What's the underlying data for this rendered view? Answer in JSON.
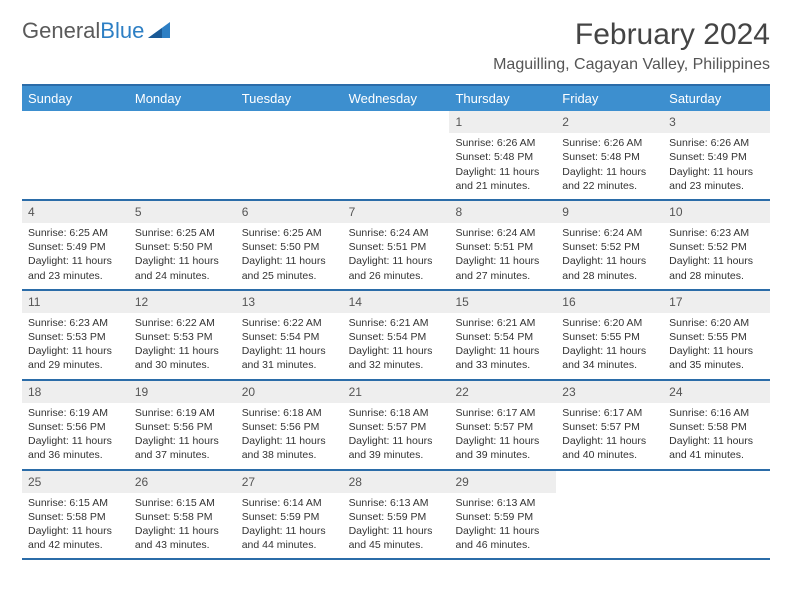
{
  "logo": {
    "text1": "General",
    "text2": "Blue"
  },
  "title": "February 2024",
  "location": "Maguilling, Cagayan Valley, Philippines",
  "colors": {
    "header_bg": "#3d8fcf",
    "week_border": "#2b6ca8",
    "daynum_bg": "#eeeeee",
    "logo_gray": "#5a5a5a",
    "logo_blue": "#2d7fc4"
  },
  "day_names": [
    "Sunday",
    "Monday",
    "Tuesday",
    "Wednesday",
    "Thursday",
    "Friday",
    "Saturday"
  ],
  "weeks": [
    [
      {
        "empty": true
      },
      {
        "empty": true
      },
      {
        "empty": true
      },
      {
        "empty": true
      },
      {
        "n": "1",
        "sunrise": "6:26 AM",
        "sunset": "5:48 PM",
        "day": "11 hours and 21 minutes."
      },
      {
        "n": "2",
        "sunrise": "6:26 AM",
        "sunset": "5:48 PM",
        "day": "11 hours and 22 minutes."
      },
      {
        "n": "3",
        "sunrise": "6:26 AM",
        "sunset": "5:49 PM",
        "day": "11 hours and 23 minutes."
      }
    ],
    [
      {
        "n": "4",
        "sunrise": "6:25 AM",
        "sunset": "5:49 PM",
        "day": "11 hours and 23 minutes."
      },
      {
        "n": "5",
        "sunrise": "6:25 AM",
        "sunset": "5:50 PM",
        "day": "11 hours and 24 minutes."
      },
      {
        "n": "6",
        "sunrise": "6:25 AM",
        "sunset": "5:50 PM",
        "day": "11 hours and 25 minutes."
      },
      {
        "n": "7",
        "sunrise": "6:24 AM",
        "sunset": "5:51 PM",
        "day": "11 hours and 26 minutes."
      },
      {
        "n": "8",
        "sunrise": "6:24 AM",
        "sunset": "5:51 PM",
        "day": "11 hours and 27 minutes."
      },
      {
        "n": "9",
        "sunrise": "6:24 AM",
        "sunset": "5:52 PM",
        "day": "11 hours and 28 minutes."
      },
      {
        "n": "10",
        "sunrise": "6:23 AM",
        "sunset": "5:52 PM",
        "day": "11 hours and 28 minutes."
      }
    ],
    [
      {
        "n": "11",
        "sunrise": "6:23 AM",
        "sunset": "5:53 PM",
        "day": "11 hours and 29 minutes."
      },
      {
        "n": "12",
        "sunrise": "6:22 AM",
        "sunset": "5:53 PM",
        "day": "11 hours and 30 minutes."
      },
      {
        "n": "13",
        "sunrise": "6:22 AM",
        "sunset": "5:54 PM",
        "day": "11 hours and 31 minutes."
      },
      {
        "n": "14",
        "sunrise": "6:21 AM",
        "sunset": "5:54 PM",
        "day": "11 hours and 32 minutes."
      },
      {
        "n": "15",
        "sunrise": "6:21 AM",
        "sunset": "5:54 PM",
        "day": "11 hours and 33 minutes."
      },
      {
        "n": "16",
        "sunrise": "6:20 AM",
        "sunset": "5:55 PM",
        "day": "11 hours and 34 minutes."
      },
      {
        "n": "17",
        "sunrise": "6:20 AM",
        "sunset": "5:55 PM",
        "day": "11 hours and 35 minutes."
      }
    ],
    [
      {
        "n": "18",
        "sunrise": "6:19 AM",
        "sunset": "5:56 PM",
        "day": "11 hours and 36 minutes."
      },
      {
        "n": "19",
        "sunrise": "6:19 AM",
        "sunset": "5:56 PM",
        "day": "11 hours and 37 minutes."
      },
      {
        "n": "20",
        "sunrise": "6:18 AM",
        "sunset": "5:56 PM",
        "day": "11 hours and 38 minutes."
      },
      {
        "n": "21",
        "sunrise": "6:18 AM",
        "sunset": "5:57 PM",
        "day": "11 hours and 39 minutes."
      },
      {
        "n": "22",
        "sunrise": "6:17 AM",
        "sunset": "5:57 PM",
        "day": "11 hours and 39 minutes."
      },
      {
        "n": "23",
        "sunrise": "6:17 AM",
        "sunset": "5:57 PM",
        "day": "11 hours and 40 minutes."
      },
      {
        "n": "24",
        "sunrise": "6:16 AM",
        "sunset": "5:58 PM",
        "day": "11 hours and 41 minutes."
      }
    ],
    [
      {
        "n": "25",
        "sunrise": "6:15 AM",
        "sunset": "5:58 PM",
        "day": "11 hours and 42 minutes."
      },
      {
        "n": "26",
        "sunrise": "6:15 AM",
        "sunset": "5:58 PM",
        "day": "11 hours and 43 minutes."
      },
      {
        "n": "27",
        "sunrise": "6:14 AM",
        "sunset": "5:59 PM",
        "day": "11 hours and 44 minutes."
      },
      {
        "n": "28",
        "sunrise": "6:13 AM",
        "sunset": "5:59 PM",
        "day": "11 hours and 45 minutes."
      },
      {
        "n": "29",
        "sunrise": "6:13 AM",
        "sunset": "5:59 PM",
        "day": "11 hours and 46 minutes."
      },
      {
        "empty": true
      },
      {
        "empty": true
      }
    ]
  ],
  "labels": {
    "sunrise": "Sunrise:",
    "sunset": "Sunset:",
    "daylight": "Daylight:"
  }
}
